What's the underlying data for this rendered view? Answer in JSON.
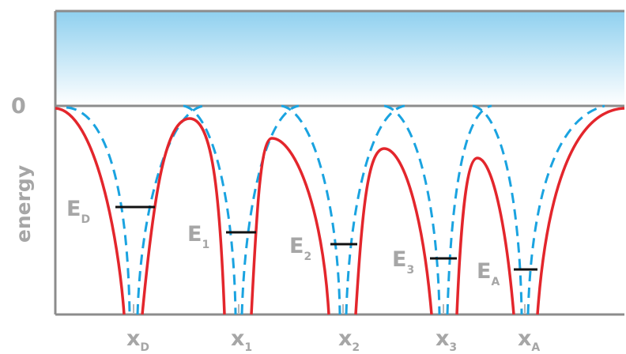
{
  "diagram": {
    "zero_label": "0",
    "y_axis_label": "energy",
    "colors": {
      "continuum_top": "#8fd0ef",
      "continuum_bottom": "#ffffff",
      "frame": "#8c8c8c",
      "solid_curve": "#e3262c",
      "dashed_curve": "#1aa3e0",
      "level_line": "#111111",
      "label": "#a6a6a6"
    },
    "wells": [
      {
        "site_main": "x",
        "site_sub": "D",
        "level_main": "E",
        "level_sub": "D"
      },
      {
        "site_main": "x",
        "site_sub": "1",
        "level_main": "E",
        "level_sub": "1"
      },
      {
        "site_main": "x",
        "site_sub": "2",
        "level_main": "E",
        "level_sub": "2"
      },
      {
        "site_main": "x",
        "site_sub": "3",
        "level_main": "E",
        "level_sub": "3"
      },
      {
        "site_main": "x",
        "site_sub": "A",
        "level_main": "E",
        "level_sub": "A"
      }
    ]
  }
}
